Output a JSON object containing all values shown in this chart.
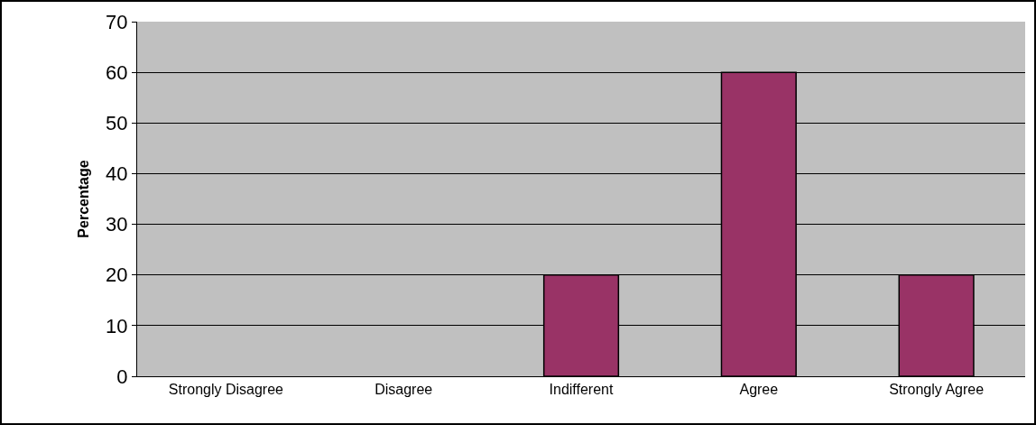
{
  "chart_data": {
    "type": "bar",
    "ylabel": "Percentage",
    "categories": [
      "Strongly Disagree",
      "Disagree",
      "Indifferent",
      "Agree",
      "Strongly Agree"
    ],
    "values": [
      0,
      0,
      20,
      60,
      20
    ],
    "color": "#993366",
    "ylim": [
      0,
      70
    ],
    "yticks": [
      0,
      10,
      20,
      30,
      40,
      50,
      60,
      70
    ],
    "grid": "y",
    "legend": false
  }
}
